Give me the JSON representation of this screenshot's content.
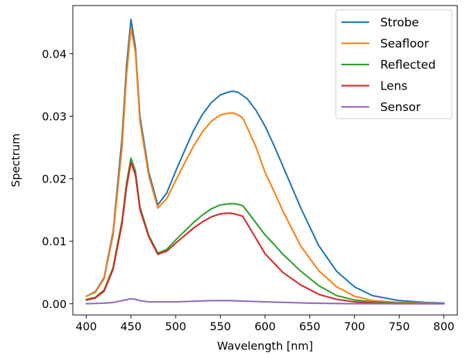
{
  "chart_data": {
    "type": "line",
    "xlabel": "Wavelength [nm]",
    "ylabel": "Spectrum",
    "xlim": [
      385,
      815
    ],
    "ylim": [
      -0.0018,
      0.0477
    ],
    "xticks": [
      400,
      450,
      500,
      550,
      600,
      650,
      700,
      750,
      800
    ],
    "yticks": [
      0.0,
      0.01,
      0.02,
      0.03,
      0.04
    ],
    "ytick_labels": [
      "0.00",
      "0.01",
      "0.02",
      "0.03",
      "0.04"
    ],
    "grid": false,
    "legend": "top-right",
    "series": [
      {
        "name": "Strobe",
        "color": "#1f77b4",
        "x": [
          400,
          410,
          420,
          430,
          440,
          445,
          450,
          455,
          460,
          470,
          480,
          490,
          500,
          510,
          520,
          530,
          540,
          550,
          560,
          565,
          570,
          580,
          590,
          600,
          610,
          620,
          640,
          660,
          680,
          700,
          720,
          750,
          780,
          800
        ],
        "y": [
          0.0012,
          0.0019,
          0.0042,
          0.0115,
          0.0265,
          0.038,
          0.0455,
          0.041,
          0.03,
          0.021,
          0.0158,
          0.0177,
          0.0212,
          0.0245,
          0.0277,
          0.0303,
          0.0322,
          0.0334,
          0.0339,
          0.034,
          0.0338,
          0.0328,
          0.0309,
          0.0284,
          0.0253,
          0.022,
          0.0153,
          0.0093,
          0.0052,
          0.0027,
          0.0013,
          0.0005,
          0.0002,
          0.0001
        ]
      },
      {
        "name": "Seafloor",
        "color": "#ff7f0e",
        "x": [
          400,
          410,
          420,
          430,
          440,
          445,
          450,
          455,
          460,
          470,
          480,
          490,
          500,
          510,
          520,
          530,
          540,
          550,
          560,
          565,
          570,
          575,
          580,
          590,
          600,
          610,
          620,
          640,
          660,
          680,
          700,
          720,
          750,
          780,
          800
        ],
        "y": [
          0.0012,
          0.0018,
          0.004,
          0.011,
          0.025,
          0.0365,
          0.0441,
          0.0402,
          0.0292,
          0.0204,
          0.0153,
          0.0168,
          0.0197,
          0.0225,
          0.0252,
          0.0275,
          0.0292,
          0.0302,
          0.0305,
          0.0305,
          0.0302,
          0.0297,
          0.0282,
          0.025,
          0.021,
          0.018,
          0.0148,
          0.0092,
          0.0053,
          0.0027,
          0.0012,
          0.0005,
          0.0002,
          0.0001,
          0.0
        ]
      },
      {
        "name": "Reflected",
        "color": "#2ca02c",
        "x": [
          400,
          410,
          420,
          430,
          440,
          445,
          450,
          455,
          460,
          470,
          480,
          490,
          500,
          510,
          520,
          530,
          540,
          550,
          560,
          565,
          570,
          575,
          580,
          590,
          600,
          610,
          620,
          640,
          660,
          680,
          700,
          720,
          750,
          780,
          800
        ],
        "y": [
          0.0007,
          0.001,
          0.0022,
          0.0058,
          0.0133,
          0.0193,
          0.0233,
          0.0212,
          0.0155,
          0.0109,
          0.0081,
          0.0087,
          0.0102,
          0.0116,
          0.013,
          0.0142,
          0.0152,
          0.0158,
          0.016,
          0.016,
          0.0159,
          0.0157,
          0.0148,
          0.0129,
          0.011,
          0.0095,
          0.0079,
          0.0052,
          0.0029,
          0.0013,
          0.0006,
          0.0003,
          0.0001,
          0.0,
          0.0
        ]
      },
      {
        "name": "Lens",
        "color": "#d62728",
        "x": [
          400,
          410,
          420,
          430,
          440,
          445,
          450,
          455,
          460,
          470,
          480,
          490,
          500,
          510,
          520,
          530,
          540,
          550,
          560,
          565,
          570,
          575,
          580,
          590,
          600,
          610,
          620,
          640,
          660,
          680,
          700,
          720,
          750,
          780,
          800
        ],
        "y": [
          0.0006,
          0.0009,
          0.002,
          0.0055,
          0.0128,
          0.0186,
          0.0226,
          0.0206,
          0.0151,
          0.0107,
          0.0079,
          0.0084,
          0.0097,
          0.0109,
          0.0121,
          0.0131,
          0.0139,
          0.0144,
          0.0145,
          0.0144,
          0.0142,
          0.014,
          0.0128,
          0.0104,
          0.008,
          0.0065,
          0.005,
          0.003,
          0.0015,
          0.0007,
          0.0003,
          0.0001,
          0.0,
          0.0,
          0.0
        ]
      },
      {
        "name": "Sensor",
        "color": "#9467bd",
        "x": [
          400,
          420,
          430,
          440,
          450,
          455,
          460,
          470,
          480,
          500,
          520,
          540,
          560,
          580,
          600,
          650,
          700,
          750,
          800
        ],
        "y": [
          0.0,
          0.0001,
          0.0002,
          0.0005,
          0.0008,
          0.0007,
          0.0005,
          0.0003,
          0.0003,
          0.0003,
          0.0004,
          0.0005,
          0.0005,
          0.0004,
          0.0003,
          0.0001,
          0.0,
          0.0,
          0.0
        ]
      }
    ]
  }
}
